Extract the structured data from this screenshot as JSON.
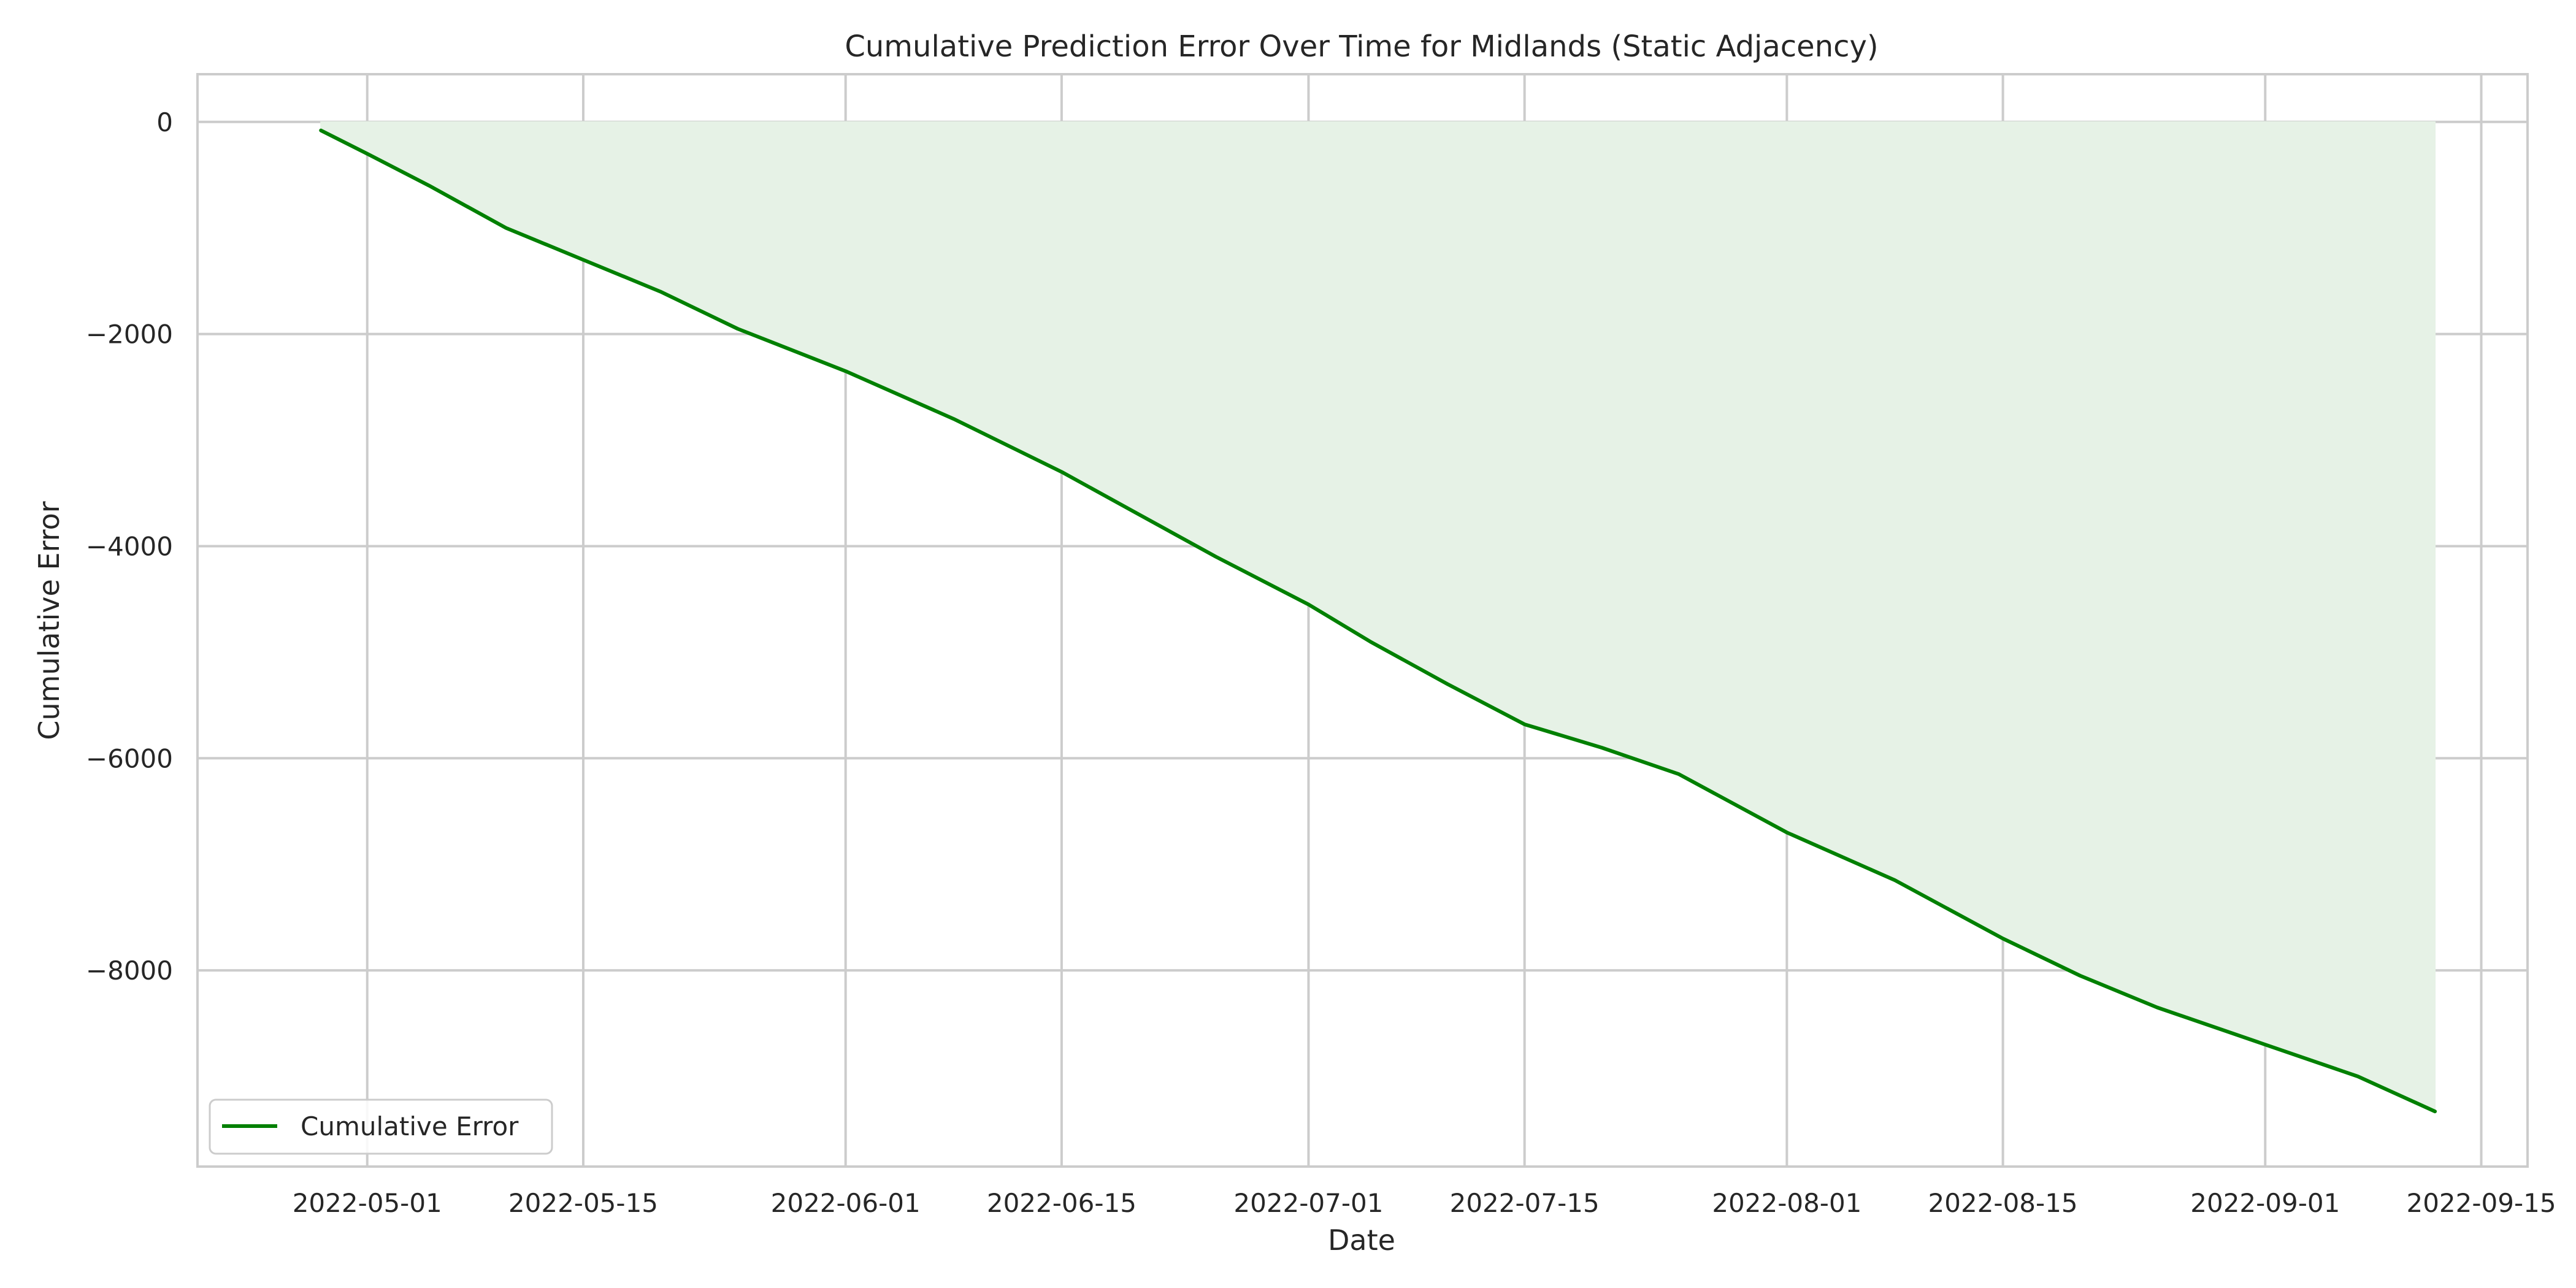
{
  "chart_data": {
    "type": "area",
    "title": "Cumulative Prediction Error Over Time for Midlands (Static Adjacency)",
    "xlabel": "Date",
    "ylabel": "Cumulative Error",
    "xlim": [
      "2022-04-20",
      "2022-09-18"
    ],
    "ylim": [
      -9850,
      450
    ],
    "x_ticks": [
      "2022-05-01",
      "2022-05-15",
      "2022-06-01",
      "2022-06-15",
      "2022-07-01",
      "2022-07-15",
      "2022-08-01",
      "2022-08-15",
      "2022-09-01",
      "2022-09-15"
    ],
    "y_ticks": [
      {
        "value": 0,
        "label": "0"
      },
      {
        "value": -2000,
        "label": "−2000"
      },
      {
        "value": -4000,
        "label": "−4000"
      },
      {
        "value": -6000,
        "label": "−6000"
      },
      {
        "value": -8000,
        "label": "−8000"
      }
    ],
    "grid": true,
    "legend": {
      "position": "bottom-left",
      "entries": [
        "Cumulative Error"
      ]
    },
    "series": [
      {
        "name": "Cumulative Error",
        "color": "#008000",
        "fill_color": "#e6f2e6",
        "x": [
          "2022-04-28",
          "2022-05-01",
          "2022-05-05",
          "2022-05-10",
          "2022-05-15",
          "2022-05-20",
          "2022-05-25",
          "2022-06-01",
          "2022-06-08",
          "2022-06-15",
          "2022-06-20",
          "2022-06-25",
          "2022-07-01",
          "2022-07-05",
          "2022-07-10",
          "2022-07-15",
          "2022-07-20",
          "2022-07-25",
          "2022-08-01",
          "2022-08-08",
          "2022-08-15",
          "2022-08-20",
          "2022-08-25",
          "2022-09-01",
          "2022-09-07",
          "2022-09-12"
        ],
        "y": [
          -80,
          -300,
          -600,
          -1000,
          -1300,
          -1600,
          -1950,
          -2350,
          -2800,
          -3300,
          -3700,
          -4100,
          -4550,
          -4900,
          -5300,
          -5680,
          -5900,
          -6150,
          -6700,
          -7150,
          -7700,
          -8050,
          -8350,
          -8700,
          -9000,
          -9330
        ]
      }
    ]
  }
}
